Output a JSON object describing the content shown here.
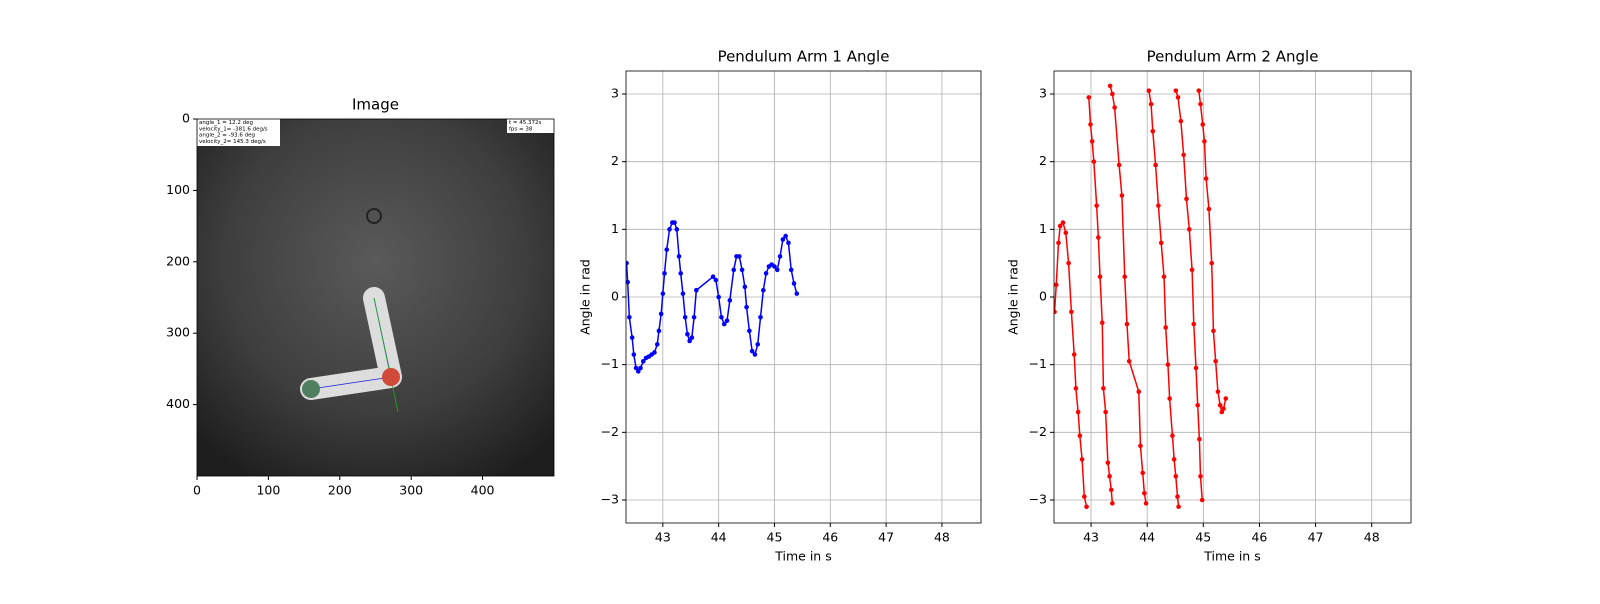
{
  "chart_data": [
    {
      "type": "image",
      "title": "Image",
      "xlim": [
        0,
        500
      ],
      "ylim": [
        500,
        0
      ],
      "xticks": [
        0,
        100,
        200,
        300,
        400
      ],
      "yticks": [
        0,
        100,
        200,
        300,
        400
      ],
      "overlay_left": [
        "angle_1  =  12.2 deg",
        "velocity_1= -381.6 deg/s",
        "angle_2  =  -93.6 deg",
        "velocity_2= 145.3 deg/s"
      ],
      "overlay_right": [
        "t = 45.372s",
        "fps = 38"
      ]
    },
    {
      "type": "line",
      "title": "Pendulum Arm 1 Angle",
      "xlabel": "Time in s",
      "ylabel": "Angle in rad",
      "xlim": [
        42.34,
        48.7
      ],
      "ylim": [
        -3.34,
        3.34
      ],
      "grid": true,
      "xticks": [
        43,
        44,
        45,
        46,
        47,
        48
      ],
      "yticks": [
        {
          "value": -3,
          "label": "−3"
        },
        {
          "value": -2,
          "label": "−2"
        },
        {
          "value": -1,
          "label": "−1"
        },
        0,
        1,
        2,
        3
      ],
      "series": [
        {
          "color": "#0000ff",
          "x": [
            42.35,
            42.37,
            42.4,
            42.45,
            42.48,
            42.52,
            42.56,
            42.6,
            42.65,
            42.7,
            42.75,
            42.8,
            42.85,
            42.9,
            42.93,
            42.97,
            43.0,
            43.03,
            43.07,
            43.12,
            43.17,
            43.21,
            43.25,
            43.29,
            43.32,
            43.36,
            43.4,
            43.44,
            43.48,
            43.52,
            43.56,
            43.6,
            43.9,
            43.95,
            44.0,
            44.05,
            44.1,
            44.15,
            44.2,
            44.27,
            44.32,
            44.37,
            44.42,
            44.47,
            44.5,
            44.55,
            44.6,
            44.65,
            44.7,
            44.75,
            44.8,
            44.85,
            44.9,
            44.95,
            45.0,
            45.05,
            45.1,
            45.15,
            45.2,
            45.25,
            45.3,
            45.35,
            45.4
          ],
          "values": [
            0.5,
            0.22,
            -0.3,
            -0.6,
            -0.85,
            -1.05,
            -1.1,
            -1.05,
            -0.95,
            -0.9,
            -0.88,
            -0.85,
            -0.82,
            -0.7,
            -0.5,
            -0.25,
            0.05,
            0.35,
            0.7,
            1.0,
            1.1,
            1.1,
            1.0,
            0.6,
            0.35,
            0.05,
            -0.3,
            -0.55,
            -0.65,
            -0.6,
            -0.3,
            0.1,
            0.3,
            0.25,
            0.0,
            -0.3,
            -0.4,
            -0.35,
            -0.05,
            0.4,
            0.6,
            0.6,
            0.4,
            0.15,
            -0.15,
            -0.5,
            -0.8,
            -0.85,
            -0.7,
            -0.3,
            0.1,
            0.35,
            0.45,
            0.48,
            0.45,
            0.4,
            0.6,
            0.85,
            0.9,
            0.8,
            0.4,
            0.2,
            0.05
          ]
        }
      ]
    },
    {
      "type": "line",
      "title": "Pendulum Arm 2 Angle",
      "xlabel": "Time in s",
      "ylabel": "Angle in rad",
      "xlim": [
        42.34,
        48.7
      ],
      "ylim": [
        -3.34,
        3.34
      ],
      "grid": true,
      "xticks": [
        43,
        44,
        45,
        46,
        47,
        48
      ],
      "yticks": [
        {
          "value": -3,
          "label": "−3"
        },
        {
          "value": -2,
          "label": "−2"
        },
        {
          "value": -1,
          "label": "−1"
        },
        0,
        1,
        2,
        3
      ],
      "series": [
        {
          "color": "#ff0000",
          "x": [
            42.35,
            42.38,
            42.42,
            42.45,
            42.5,
            42.55,
            42.6,
            42.65,
            42.7,
            42.73,
            42.77,
            42.8,
            42.84,
            42.88,
            42.92,
            null,
            42.96,
            42.99,
            43.02,
            43.05,
            43.1,
            43.13,
            43.16,
            43.2,
            43.22,
            43.26,
            43.3,
            43.33,
            43.36,
            43.38,
            null,
            43.34,
            43.38,
            43.42,
            43.5,
            43.55,
            43.6,
            43.64,
            43.68,
            43.85,
            43.88,
            43.92,
            43.95,
            43.98,
            null,
            44.03,
            44.07,
            44.1,
            44.15,
            44.2,
            44.25,
            44.3,
            44.33,
            44.37,
            44.4,
            44.45,
            44.48,
            44.51,
            44.54,
            44.56,
            null,
            44.51,
            44.55,
            44.6,
            44.65,
            44.7,
            44.75,
            44.8,
            44.83,
            44.87,
            44.9,
            44.93,
            44.95,
            44.98,
            null,
            44.92,
            44.95,
            44.99,
            45.02,
            45.05,
            45.1,
            45.15,
            45.18,
            45.22,
            45.26,
            45.3,
            45.33,
            45.36,
            45.4
          ],
          "values": [
            -0.22,
            0.18,
            0.8,
            1.05,
            1.1,
            0.95,
            0.5,
            -0.22,
            -0.85,
            -1.35,
            -1.7,
            -2.05,
            -2.4,
            -2.95,
            -3.1,
            null,
            2.95,
            2.55,
            2.3,
            2.0,
            1.35,
            0.88,
            0.3,
            -0.38,
            -1.35,
            -1.7,
            -2.45,
            -2.65,
            -2.85,
            -3.05,
            null,
            3.12,
            3.0,
            2.8,
            1.95,
            1.5,
            0.3,
            -0.4,
            -0.95,
            -1.4,
            -2.2,
            -2.6,
            -2.9,
            -3.05,
            null,
            3.05,
            2.85,
            2.45,
            1.95,
            1.35,
            0.8,
            0.3,
            -0.45,
            -1.0,
            -1.5,
            -2.05,
            -2.4,
            -2.65,
            -2.95,
            -3.1,
            null,
            3.05,
            2.95,
            2.6,
            2.1,
            1.45,
            1.0,
            0.4,
            -0.4,
            -1.05,
            -1.6,
            -2.1,
            -2.65,
            -3.0,
            null,
            3.05,
            2.85,
            2.55,
            2.3,
            1.75,
            1.3,
            0.5,
            -0.5,
            -0.95,
            -1.4,
            -1.6,
            -1.7,
            -1.65,
            -1.5
          ]
        }
      ]
    }
  ]
}
